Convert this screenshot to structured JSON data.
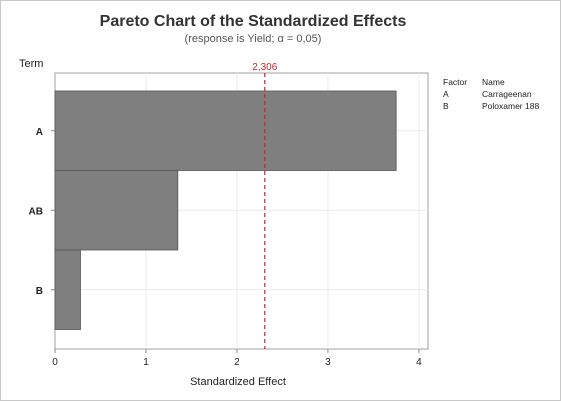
{
  "chart_data": {
    "type": "bar",
    "orientation": "horizontal",
    "title": "Pareto Chart of the Standardized Effects",
    "subtitle": "(response is Yield; α = 0,05)",
    "xlabel": "Standardized Effect",
    "ylabel": "Term",
    "categories": [
      "A",
      "AB",
      "B"
    ],
    "values": [
      3.75,
      1.35,
      0.28
    ],
    "xlim": [
      0,
      4.1
    ],
    "xticks": [
      "0",
      "1",
      "2",
      "3",
      "4"
    ],
    "grid": true,
    "bar_color": "#7f7f7f",
    "reference_line": {
      "value": 2.306,
      "label": "2,306",
      "color": "#c0282d",
      "style": "dashed"
    },
    "legend": {
      "position": "right",
      "header": [
        "Factor",
        "Name"
      ],
      "rows": [
        {
          "factor": "A",
          "name": "Carrageenan"
        },
        {
          "factor": "B",
          "name": "Poloxamer 188"
        }
      ]
    }
  }
}
